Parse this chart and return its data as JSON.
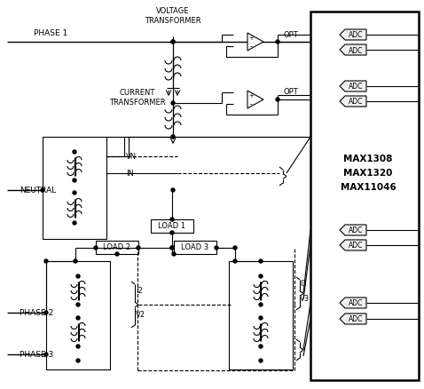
{
  "bg_color": "#ffffff",
  "line_color": "#000000",
  "fig_width": 4.78,
  "fig_height": 4.39,
  "dpi": 100,
  "labels": {
    "phase1": "PHASE 1",
    "phase2": "PHASE 2",
    "phase3": "PHASE 3",
    "neutral": "NEUTRAL",
    "voltage_transformer": "VOLTAGE\nTRANSFORMER",
    "current_transformer": "CURRENT\nTRANSFORMER",
    "load1": "LOAD 1",
    "load2": "LOAD 2",
    "load3": "LOAD 3",
    "vn": "VN",
    "in_label": "IN",
    "i2": "I2",
    "v2": "V2",
    "i3": "I3",
    "v3": "V3",
    "opt": "OPT",
    "adc": "ADC",
    "max_chips": "MAX1308\nMAX1320\nMAX11046"
  }
}
